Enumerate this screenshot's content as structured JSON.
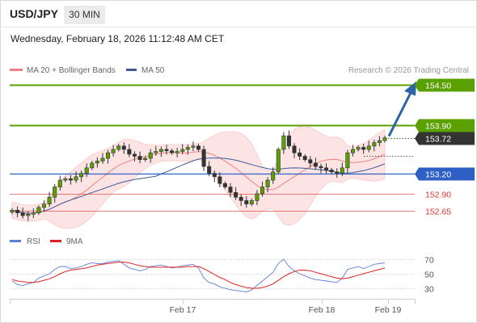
{
  "header": {
    "symbol": "USD/JPY",
    "timeframe": "30 MIN",
    "datetime": "Wednesday, February 18, 2026 11:12:48 AM CET"
  },
  "legend": {
    "ma20": "MA 20 + Bollinger Bands",
    "ma50": "MA 50",
    "credit": "Research © 2026 Trading Central"
  },
  "colors": {
    "resistance": "#5aa000",
    "support": "#2e5fc4",
    "minor_support": "#e05050",
    "ma20": "#f08080",
    "ma50": "#3b5b98",
    "bollinger_fill": "#fde4e4",
    "candle": "#333333",
    "bull": "#5aa000",
    "current": "#333333",
    "arrow": "#2e63a8",
    "rsi": "#5b7fd6",
    "rsi_ma": "#e02020"
  },
  "chart_data": {
    "type": "candlestick",
    "x_labels": [
      "Feb 17",
      "Feb 18",
      "Feb 19"
    ],
    "ylim": [
      152.45,
      154.58
    ],
    "levels": [
      {
        "value": 154.5,
        "label": "154.50",
        "kind": "resistance"
      },
      {
        "value": 153.9,
        "label": "153.90",
        "kind": "resistance"
      },
      {
        "value": 153.72,
        "label": "153.72",
        "kind": "current"
      },
      {
        "value": 153.2,
        "label": "153.20",
        "kind": "support"
      },
      {
        "value": 152.9,
        "label": "152.90",
        "kind": "minor"
      },
      {
        "value": 152.65,
        "label": "152.65",
        "kind": "minor"
      }
    ],
    "close": [
      152.66,
      152.62,
      152.58,
      152.6,
      152.62,
      152.7,
      152.75,
      152.85,
      153.0,
      153.1,
      153.12,
      153.1,
      153.15,
      153.2,
      153.28,
      153.35,
      153.38,
      153.42,
      153.5,
      153.55,
      153.6,
      153.55,
      153.48,
      153.45,
      153.4,
      153.42,
      153.5,
      153.52,
      153.55,
      153.53,
      153.5,
      153.52,
      153.55,
      153.58,
      153.6,
      153.55,
      153.3,
      153.2,
      153.15,
      153.05,
      153.0,
      152.92,
      152.85,
      152.8,
      152.75,
      152.8,
      152.9,
      153.0,
      153.1,
      153.22,
      153.55,
      153.75,
      153.6,
      153.5,
      153.45,
      153.4,
      153.35,
      153.3,
      153.28,
      153.25,
      153.22,
      153.2,
      153.28,
      153.5,
      153.55,
      153.58,
      153.55,
      153.6,
      153.65,
      153.68,
      153.72
    ],
    "rsi": {
      "series": [
        {
          "name": "RSI",
          "values": [
            40,
            35,
            34,
            36,
            38,
            44,
            47,
            50,
            56,
            60,
            60,
            57,
            58,
            60,
            63,
            65,
            64,
            64,
            66,
            67,
            68,
            63,
            58,
            56,
            54,
            56,
            60,
            61,
            62,
            60,
            58,
            59,
            61,
            62,
            63,
            58,
            44,
            38,
            36,
            32,
            30,
            28,
            27,
            26,
            25,
            28,
            34,
            40,
            46,
            52,
            64,
            70,
            60,
            54,
            50,
            47,
            44,
            42,
            41,
            40,
            39,
            38,
            44,
            56,
            58,
            60,
            57,
            60,
            63,
            64,
            65
          ]
        },
        {
          "name": "9MA",
          "values": [
            42,
            40,
            39,
            38,
            38,
            39,
            41,
            43,
            46,
            50,
            53,
            55,
            56,
            57,
            58,
            60,
            62,
            63,
            64,
            65,
            66,
            66,
            65,
            63,
            61,
            60,
            59,
            59,
            59,
            59,
            59,
            59,
            59,
            60,
            60,
            60,
            57,
            53,
            49,
            45,
            42,
            38,
            35,
            33,
            31,
            30,
            30,
            31,
            33,
            36,
            41,
            46,
            50,
            53,
            55,
            55,
            54,
            52,
            50,
            48,
            46,
            44,
            43,
            44,
            46,
            48,
            50,
            52,
            54,
            56,
            58
          ]
        }
      ],
      "yticks": [
        70,
        50,
        30
      ],
      "ylim": [
        20,
        80
      ]
    }
  }
}
